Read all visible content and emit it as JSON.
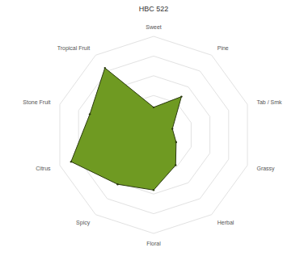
{
  "chart_data": {
    "type": "radar",
    "title": "HBC 522",
    "categories": [
      "Sweet",
      "Pine",
      "Tab / Smk",
      "Grassy",
      "Herbal",
      "Floral",
      "Spicy",
      "Citrus",
      "Stone Fruit",
      "Tropical Fruit"
    ],
    "values": [
      1.4,
      2.4,
      1.0,
      1.2,
      1.9,
      2.8,
      3.1,
      4.4,
      3.4,
      4.2
    ],
    "color": "#6f9a22",
    "ylim": [
      0,
      5
    ],
    "yticks": [
      0,
      1,
      2,
      3,
      4,
      5
    ],
    "grid": true,
    "tick_labels": false
  }
}
